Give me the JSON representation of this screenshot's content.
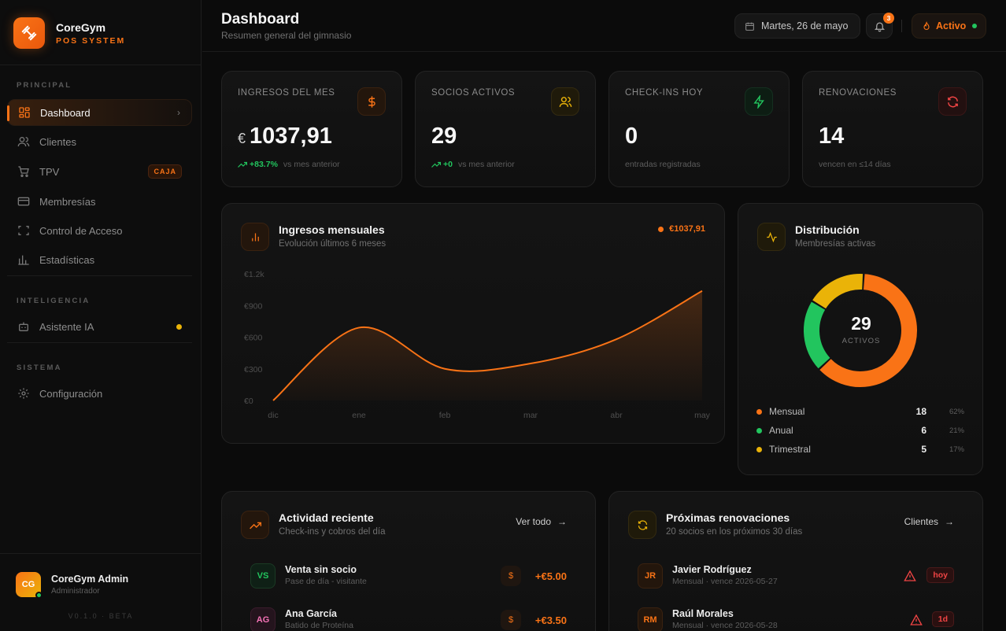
{
  "brand": {
    "name": "CoreGym",
    "subtitle": "POS SYSTEM"
  },
  "sidebar": {
    "sections": [
      "PRINCIPAL",
      "INTELIGENCIA",
      "SISTEMA"
    ],
    "items": [
      {
        "label": "Dashboard",
        "icon": "grid-icon",
        "active": true
      },
      {
        "label": "Clientes",
        "icon": "users-icon"
      },
      {
        "label": "TPV",
        "icon": "cart-icon",
        "badge": "CAJA"
      },
      {
        "label": "Membresías",
        "icon": "card-icon"
      },
      {
        "label": "Control de Acceso",
        "icon": "scan-icon"
      },
      {
        "label": "Estadísticas",
        "icon": "bar-chart-icon"
      },
      {
        "label": "Asistente IA",
        "icon": "bot-icon"
      },
      {
        "label": "Configuración",
        "icon": "gear-icon"
      }
    ],
    "user": {
      "initials": "CG",
      "name": "CoreGym Admin",
      "role": "Administrador"
    },
    "version": "V0.1.0 · BETA"
  },
  "header": {
    "title": "Dashboard",
    "subtitle": "Resumen general del gimnasio",
    "date": "Martes, 26 de mayo",
    "notifications": "3",
    "status": "Activo"
  },
  "stats": [
    {
      "label": "INGRESOS DEL MES",
      "currency": "€",
      "value": "1037,91",
      "trend": "+83.7%",
      "foot": "vs mes anterior",
      "color": "#f97316"
    },
    {
      "label": "SOCIOS ACTIVOS",
      "value": "29",
      "trend": "+0",
      "foot": "vs mes anterior",
      "color": "#eab308"
    },
    {
      "label": "CHECK-INS HOY",
      "value": "0",
      "foot": "entradas registradas",
      "color": "#22c55e"
    },
    {
      "label": "RENOVACIONES",
      "value": "14",
      "foot": "vencen en ≤14 días",
      "color": "#ef4444"
    }
  ],
  "revenue": {
    "title": "Ingresos mensuales",
    "subtitle": "Evolución últimos 6 meses",
    "badge": "€1037,91",
    "chart_data": {
      "type": "area",
      "x": [
        "dic",
        "ene",
        "feb",
        "mar",
        "abr",
        "may"
      ],
      "y": [
        0,
        690,
        300,
        350,
        580,
        1037.91
      ],
      "yticks": [
        "€0",
        "€300",
        "€600",
        "€900",
        "€1.2k"
      ],
      "ylim": [
        0,
        1200
      ],
      "color": "#f97316"
    }
  },
  "distribution": {
    "title": "Distribución",
    "subtitle": "Membresías activas",
    "total": "29",
    "total_label": "ACTIVOS",
    "chart_data": {
      "type": "pie",
      "categories": [
        "Mensual",
        "Anual",
        "Trimestral"
      ],
      "values": [
        18,
        6,
        5
      ],
      "percents": [
        "62%",
        "21%",
        "17%"
      ],
      "colors": [
        "#f97316",
        "#22c55e",
        "#eab308"
      ]
    }
  },
  "activity": {
    "title": "Actividad reciente",
    "subtitle": "Check-ins y cobros del día",
    "link": "Ver todo",
    "rows": [
      {
        "initials": "VS",
        "name": "Venta sin socio",
        "detail": "Pase de día - visitante",
        "amount": "+€5.00",
        "color": "#22c55e",
        "bg": "#0f2016"
      },
      {
        "initials": "AG",
        "name": "Ana García",
        "detail": "Batido de Proteína",
        "amount": "+€3.50",
        "color": "#f472b6",
        "bg": "#24141d"
      }
    ]
  },
  "renewals": {
    "title": "Próximas renovaciones",
    "subtitle": "20 socios en los próximos 30 días",
    "link": "Clientes",
    "rows": [
      {
        "initials": "JR",
        "name": "Javier Rodríguez",
        "detail": "Mensual · vence 2026-05-27",
        "tag": "hoy"
      },
      {
        "initials": "RM",
        "name": "Raúl Morales",
        "detail": "Mensual · vence 2026-05-28",
        "tag": "1d"
      }
    ]
  }
}
